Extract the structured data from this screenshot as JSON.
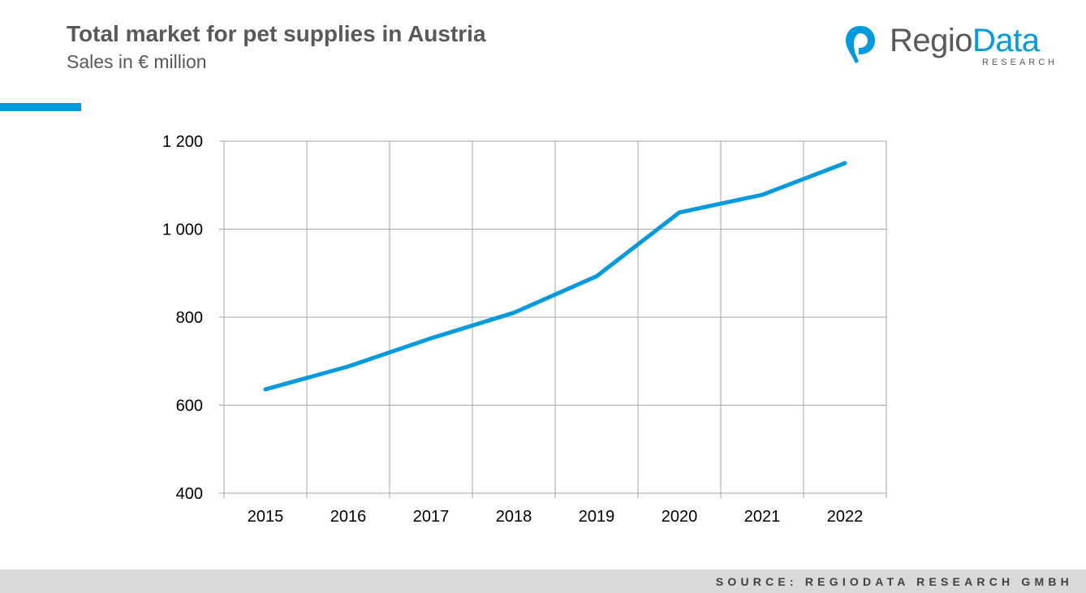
{
  "header": {
    "title": "Total market for pet supplies in Austria",
    "subtitle": "Sales in € million"
  },
  "logo": {
    "name_part1": "Regio",
    "name_part2": "Data",
    "tagline": "RESEARCH",
    "icon": "map-pin-icon"
  },
  "footer": {
    "source": "SOURCE: REGIODATA RESEARCH GMBH"
  },
  "colors": {
    "accent": "#009ade",
    "grid": "#a6a6a6",
    "text": "#595959"
  },
  "chart_data": {
    "type": "line",
    "x": [
      "2015",
      "2016",
      "2017",
      "2018",
      "2019",
      "2020",
      "2021",
      "2022"
    ],
    "series": [
      {
        "values": [
          636,
          688,
          752,
          810,
          893,
          1038,
          1078,
          1150
        ]
      }
    ],
    "xlabel": "",
    "ylabel": "",
    "ylim": [
      400,
      1200
    ],
    "yticks": [
      400,
      600,
      800,
      1000,
      1200
    ],
    "ytick_labels": [
      "400",
      "600",
      "800",
      "1 000",
      "1 200"
    ],
    "grid": true,
    "legend": "none"
  }
}
